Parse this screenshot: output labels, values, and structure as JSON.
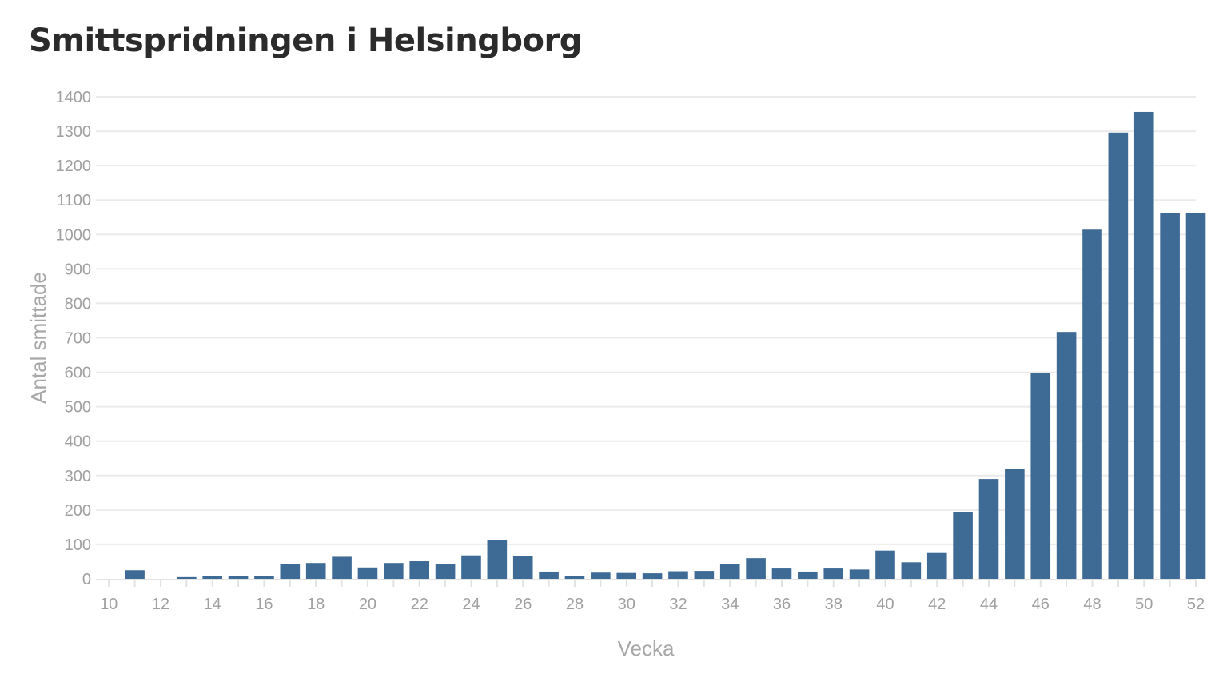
{
  "chart_data": {
    "type": "bar",
    "title": "Smittspridningen i Helsingborg",
    "xlabel": "Vecka",
    "ylabel": "Antal smittade",
    "categories": [
      10,
      11,
      12,
      13,
      14,
      15,
      16,
      17,
      18,
      19,
      20,
      21,
      22,
      23,
      24,
      25,
      26,
      27,
      28,
      29,
      30,
      31,
      32,
      33,
      34,
      35,
      36,
      37,
      38,
      39,
      40,
      41,
      42,
      43,
      44,
      45,
      46,
      47,
      48,
      49,
      50,
      51,
      52
    ],
    "values": [
      0,
      25,
      0,
      5,
      7,
      8,
      9,
      42,
      46,
      64,
      33,
      46,
      51,
      44,
      68,
      113,
      65,
      21,
      9,
      18,
      17,
      16,
      22,
      23,
      42,
      60,
      30,
      21,
      30,
      27,
      82,
      48,
      75,
      193,
      290,
      320,
      597,
      717,
      1014,
      1296,
      1356,
      1062,
      1062
    ],
    "x_tick_labels": [
      "10",
      "12",
      "14",
      "16",
      "18",
      "20",
      "22",
      "24",
      "26",
      "28",
      "30",
      "32",
      "34",
      "36",
      "38",
      "40",
      "42",
      "44",
      "46",
      "48",
      "50",
      "52"
    ],
    "y_tick_labels": [
      "0",
      "100",
      "200",
      "300",
      "400",
      "500",
      "600",
      "700",
      "800",
      "900",
      "1000",
      "1100",
      "1200",
      "1300",
      "1400"
    ],
    "ylim": [
      0,
      1400
    ],
    "grid": true,
    "bar_color": "#3e6a96"
  }
}
